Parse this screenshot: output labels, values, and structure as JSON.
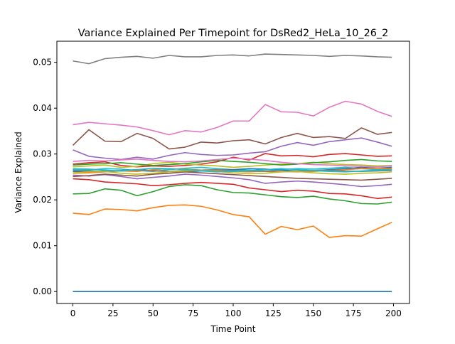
{
  "chart_data": {
    "type": "line",
    "title": "Variance Explained Per Timepoint for DsRed2_HeLa_10_26_2",
    "xlabel": "Time Point",
    "ylabel": "Variance Explained",
    "xlim": [
      -10,
      210
    ],
    "ylim": [
      -0.0026,
      0.0546
    ],
    "xticks": [
      0,
      25,
      50,
      75,
      100,
      125,
      150,
      175,
      200
    ],
    "xtick_labels": [
      "0",
      "25",
      "50",
      "75",
      "100",
      "125",
      "150",
      "175",
      "200"
    ],
    "yticks": [
      0.0,
      0.01,
      0.02,
      0.03,
      0.04,
      0.05
    ],
    "ytick_labels": [
      "0.00",
      "0.01",
      "0.02",
      "0.03",
      "0.04",
      "0.05"
    ],
    "grid": false,
    "legend": "none",
    "x": [
      0,
      10,
      20,
      30,
      40,
      50,
      60,
      70,
      80,
      90,
      100,
      110,
      120,
      130,
      140,
      150,
      160,
      170,
      180,
      190,
      199
    ],
    "series": [
      {
        "color": "#1f77b4",
        "values": [
          0.0,
          0.0,
          0.0,
          0.0,
          0.0,
          0.0,
          0.0,
          0.0,
          0.0,
          0.0,
          0.0,
          0.0,
          0.0,
          0.0,
          0.0,
          0.0,
          0.0,
          0.0,
          0.0,
          0.0,
          0.0
        ]
      },
      {
        "color": "#ff7f0e",
        "values": [
          0.0171,
          0.0168,
          0.018,
          0.0179,
          0.0176,
          0.0183,
          0.0188,
          0.0189,
          0.0186,
          0.0178,
          0.0168,
          0.0163,
          0.0125,
          0.0142,
          0.0135,
          0.0143,
          0.0118,
          0.0122,
          0.0121,
          0.0137,
          0.0151
        ]
      },
      {
        "color": "#2ca02c",
        "values": [
          0.0213,
          0.0214,
          0.0224,
          0.0221,
          0.0209,
          0.0218,
          0.0229,
          0.0233,
          0.0231,
          0.0222,
          0.0216,
          0.0215,
          0.0211,
          0.0207,
          0.0205,
          0.0208,
          0.0202,
          0.0198,
          0.0192,
          0.0191,
          0.0195
        ]
      },
      {
        "color": "#d62728",
        "values": [
          0.0278,
          0.0281,
          0.0283,
          0.0275,
          0.0272,
          0.0274,
          0.0273,
          0.0275,
          0.0278,
          0.0283,
          0.0293,
          0.0287,
          0.0301,
          0.0296,
          0.0297,
          0.0294,
          0.0299,
          0.0301,
          0.0298,
          0.0295,
          0.0296
        ]
      },
      {
        "color": "#9467bd",
        "values": [
          0.0309,
          0.0295,
          0.0291,
          0.0288,
          0.0293,
          0.0289,
          0.0297,
          0.0303,
          0.0299,
          0.0297,
          0.0298,
          0.0302,
          0.0305,
          0.0317,
          0.0325,
          0.0319,
          0.0327,
          0.0331,
          0.0335,
          0.0326,
          0.0317
        ]
      },
      {
        "color": "#8c564b",
        "values": [
          0.0319,
          0.0353,
          0.0328,
          0.0327,
          0.0345,
          0.0334,
          0.0311,
          0.0315,
          0.0326,
          0.0324,
          0.0329,
          0.0331,
          0.0322,
          0.0336,
          0.0345,
          0.0336,
          0.0338,
          0.0334,
          0.0357,
          0.0343,
          0.0347
        ]
      },
      {
        "color": "#e377c2",
        "values": [
          0.0364,
          0.0369,
          0.0366,
          0.0363,
          0.0359,
          0.0351,
          0.0342,
          0.0351,
          0.0348,
          0.0358,
          0.0372,
          0.0372,
          0.0408,
          0.0392,
          0.0391,
          0.0383,
          0.0402,
          0.0415,
          0.0409,
          0.0393,
          0.0382
        ]
      },
      {
        "color": "#7f7f7f",
        "values": [
          0.0503,
          0.0497,
          0.0508,
          0.0511,
          0.0513,
          0.0509,
          0.0515,
          0.0512,
          0.0512,
          0.0515,
          0.0516,
          0.0514,
          0.0518,
          0.0517,
          0.0516,
          0.0515,
          0.0513,
          0.0515,
          0.0514,
          0.0512,
          0.0511
        ]
      },
      {
        "color": "#bcbd22",
        "values": [
          0.0272,
          0.0274,
          0.0276,
          0.0271,
          0.0273,
          0.0279,
          0.0282,
          0.0278,
          0.0276,
          0.0274,
          0.0271,
          0.0273,
          0.0276,
          0.0278,
          0.0279,
          0.0282,
          0.0279,
          0.0277,
          0.0276,
          0.0274,
          0.0275
        ]
      },
      {
        "color": "#17becf",
        "values": [
          0.0266,
          0.0265,
          0.0268,
          0.0267,
          0.0264,
          0.0262,
          0.0266,
          0.0269,
          0.0271,
          0.0268,
          0.0266,
          0.0265,
          0.0263,
          0.0266,
          0.0268,
          0.0267,
          0.0269,
          0.0271,
          0.0268,
          0.0266,
          0.0267
        ]
      },
      {
        "color": "#1f77b4",
        "values": [
          0.0262,
          0.0261,
          0.0263,
          0.0264,
          0.0266,
          0.0264,
          0.0262,
          0.0261,
          0.0263,
          0.0265,
          0.0266,
          0.0268,
          0.0267,
          0.0265,
          0.0263,
          0.0264,
          0.0266,
          0.0268,
          0.0271,
          0.0269,
          0.0271
        ]
      },
      {
        "color": "#ff7f0e",
        "values": [
          0.0258,
          0.0259,
          0.0261,
          0.0263,
          0.0262,
          0.0266,
          0.0268,
          0.0267,
          0.0265,
          0.0264,
          0.0262,
          0.0261,
          0.0263,
          0.0262,
          0.0261,
          0.0262,
          0.0264,
          0.0266,
          0.0268,
          0.0269,
          0.0268
        ]
      },
      {
        "color": "#2ca02c",
        "values": [
          0.0276,
          0.0278,
          0.0279,
          0.0281,
          0.0278,
          0.0275,
          0.0277,
          0.0279,
          0.0283,
          0.0286,
          0.0284,
          0.0282,
          0.0279,
          0.0276,
          0.0278,
          0.0281,
          0.0283,
          0.0286,
          0.0288,
          0.0285,
          0.0284
        ]
      },
      {
        "color": "#d62728",
        "values": [
          0.0246,
          0.0244,
          0.0239,
          0.0237,
          0.0235,
          0.0231,
          0.0233,
          0.0236,
          0.0238,
          0.0236,
          0.0234,
          0.0226,
          0.0222,
          0.0218,
          0.0221,
          0.0219,
          0.0214,
          0.0213,
          0.0209,
          0.0203,
          0.0206
        ]
      },
      {
        "color": "#9467bd",
        "values": [
          0.0254,
          0.0252,
          0.0255,
          0.0251,
          0.0246,
          0.0249,
          0.0252,
          0.0256,
          0.0254,
          0.0251,
          0.0248,
          0.0244,
          0.0236,
          0.0239,
          0.0241,
          0.0239,
          0.0236,
          0.0233,
          0.0229,
          0.0231,
          0.0234
        ]
      },
      {
        "color": "#8c564b",
        "values": [
          0.0251,
          0.0253,
          0.0256,
          0.0254,
          0.0252,
          0.0256,
          0.0258,
          0.0261,
          0.0259,
          0.0257,
          0.0255,
          0.0253,
          0.0251,
          0.0249,
          0.0247,
          0.0246,
          0.0245,
          0.0244,
          0.0243,
          0.0245,
          0.0247
        ]
      },
      {
        "color": "#e377c2",
        "values": [
          0.0284,
          0.0286,
          0.0285,
          0.0287,
          0.0289,
          0.0286,
          0.0284,
          0.0283,
          0.0285,
          0.0288,
          0.0291,
          0.0289,
          0.0286,
          0.0282,
          0.0279,
          0.0277,
          0.0276,
          0.0274,
          0.0273,
          0.0272,
          0.0274
        ]
      },
      {
        "color": "#7f7f7f",
        "values": [
          0.0264,
          0.0263,
          0.0262,
          0.0264,
          0.0265,
          0.0263,
          0.0262,
          0.0264,
          0.0265,
          0.0266,
          0.0264,
          0.0263,
          0.0262,
          0.0261,
          0.0263,
          0.0264,
          0.0265,
          0.0263,
          0.0262,
          0.0263,
          0.0264
        ]
      },
      {
        "color": "#bcbd22",
        "values": [
          0.0259,
          0.0261,
          0.0262,
          0.0258,
          0.0256,
          0.0258,
          0.0261,
          0.0263,
          0.0264,
          0.0262,
          0.0259,
          0.0257,
          0.0258,
          0.0261,
          0.0262,
          0.0259,
          0.0257,
          0.0256,
          0.0258,
          0.0259,
          0.0261
        ]
      },
      {
        "color": "#17becf",
        "values": [
          0.0268,
          0.0267,
          0.0265,
          0.0263,
          0.0266,
          0.0269,
          0.0268,
          0.0266,
          0.0263,
          0.0261,
          0.0262,
          0.0264,
          0.0266,
          0.0268,
          0.0266,
          0.0264,
          0.0262,
          0.0261,
          0.0263,
          0.0265,
          0.0266
        ]
      }
    ]
  }
}
